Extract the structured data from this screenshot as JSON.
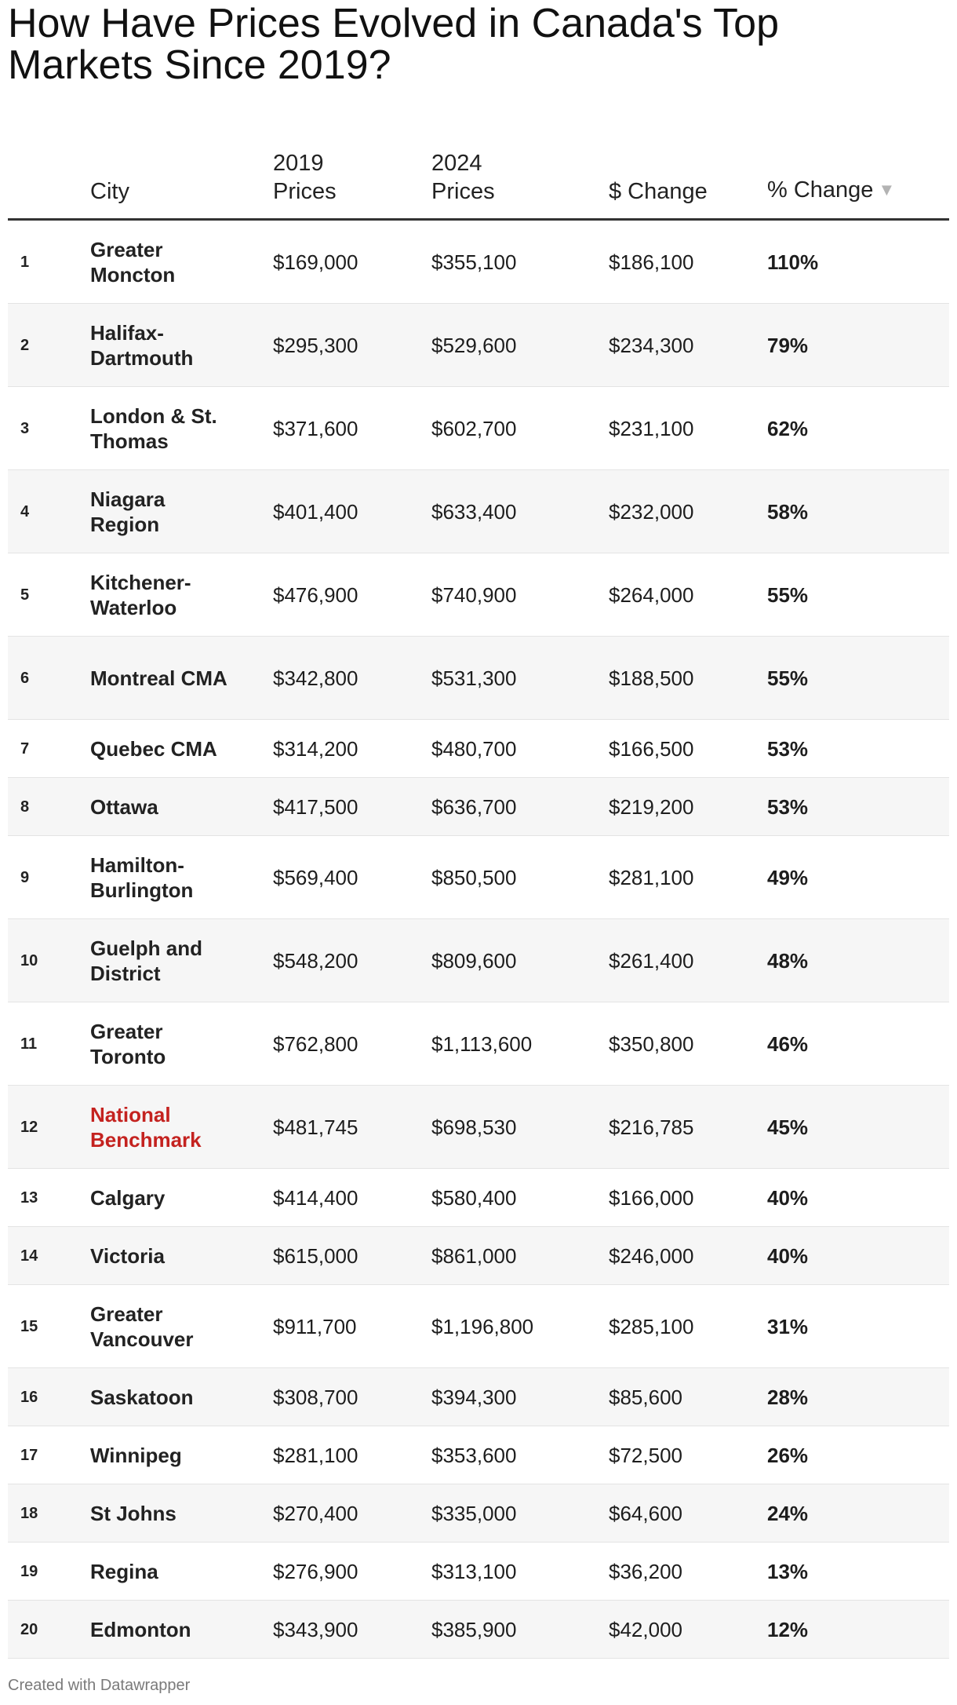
{
  "title": "How Have Prices Evolved in Canada's Top Markets Since 2019?",
  "credit": "Created with Datawrapper",
  "colors": {
    "highlight": "#c4221f",
    "header_rule": "#333333",
    "stripe": "#f6f6f6"
  },
  "chart_data": {
    "type": "table",
    "columns": [
      "",
      "City",
      "2019 Prices",
      "2024 Prices",
      "$ Change",
      "% Change"
    ],
    "sorted_by": "% Change",
    "sort_direction": "descending",
    "sort_icon": "triangle-down-icon",
    "highlight_row": "National Benchmark",
    "rows": [
      {
        "rank": "1",
        "city": "Greater Moncton",
        "p2019": "$169,000",
        "p2024": "$355,100",
        "change": "$186,100",
        "pct": "110%"
      },
      {
        "rank": "2",
        "city": "Halifax-Dartmouth",
        "p2019": "$295,300",
        "p2024": "$529,600",
        "change": "$234,300",
        "pct": "79%"
      },
      {
        "rank": "3",
        "city": "London & St. Thomas",
        "p2019": "$371,600",
        "p2024": "$602,700",
        "change": "$231,100",
        "pct": "62%"
      },
      {
        "rank": "4",
        "city": "Niagara Region",
        "p2019": "$401,400",
        "p2024": "$633,400",
        "change": "$232,000",
        "pct": "58%"
      },
      {
        "rank": "5",
        "city": "Kitchener-Waterloo",
        "p2019": "$476,900",
        "p2024": "$740,900",
        "change": "$264,000",
        "pct": "55%"
      },
      {
        "rank": "6",
        "city": "Montreal CMA",
        "p2019": "$342,800",
        "p2024": "$531,300",
        "change": "$188,500",
        "pct": "55%"
      },
      {
        "rank": "7",
        "city": "Quebec CMA",
        "p2019": "$314,200",
        "p2024": "$480,700",
        "change": "$166,500",
        "pct": "53%"
      },
      {
        "rank": "8",
        "city": "Ottawa",
        "p2019": "$417,500",
        "p2024": "$636,700",
        "change": "$219,200",
        "pct": "53%"
      },
      {
        "rank": "9",
        "city": "Hamilton-Burlington",
        "p2019": "$569,400",
        "p2024": "$850,500",
        "change": "$281,100",
        "pct": "49%"
      },
      {
        "rank": "10",
        "city": "Guelph and District",
        "p2019": "$548,200",
        "p2024": "$809,600",
        "change": "$261,400",
        "pct": "48%"
      },
      {
        "rank": "11",
        "city": "Greater Toronto",
        "p2019": "$762,800",
        "p2024": "$1,113,600",
        "change": "$350,800",
        "pct": "46%"
      },
      {
        "rank": "12",
        "city": "National Benchmark",
        "p2019": "$481,745",
        "p2024": "$698,530",
        "change": "$216,785",
        "pct": "45%"
      },
      {
        "rank": "13",
        "city": "Calgary",
        "p2019": "$414,400",
        "p2024": "$580,400",
        "change": "$166,000",
        "pct": "40%"
      },
      {
        "rank": "14",
        "city": "Victoria",
        "p2019": "$615,000",
        "p2024": "$861,000",
        "change": "$246,000",
        "pct": "40%"
      },
      {
        "rank": "15",
        "city": "Greater Vancouver",
        "p2019": "$911,700",
        "p2024": "$1,196,800",
        "change": "$285,100",
        "pct": "31%"
      },
      {
        "rank": "16",
        "city": "Saskatoon",
        "p2019": "$308,700",
        "p2024": "$394,300",
        "change": "$85,600",
        "pct": "28%"
      },
      {
        "rank": "17",
        "city": "Winnipeg",
        "p2019": "$281,100",
        "p2024": "$353,600",
        "change": "$72,500",
        "pct": "26%"
      },
      {
        "rank": "18",
        "city": "St Johns",
        "p2019": "$270,400",
        "p2024": "$335,000",
        "change": "$64,600",
        "pct": "24%"
      },
      {
        "rank": "19",
        "city": "Regina",
        "p2019": "$276,900",
        "p2024": "$313,100",
        "change": "$36,200",
        "pct": "13%"
      },
      {
        "rank": "20",
        "city": "Edmonton",
        "p2019": "$343,900",
        "p2024": "$385,900",
        "change": "$42,000",
        "pct": "12%"
      }
    ]
  }
}
